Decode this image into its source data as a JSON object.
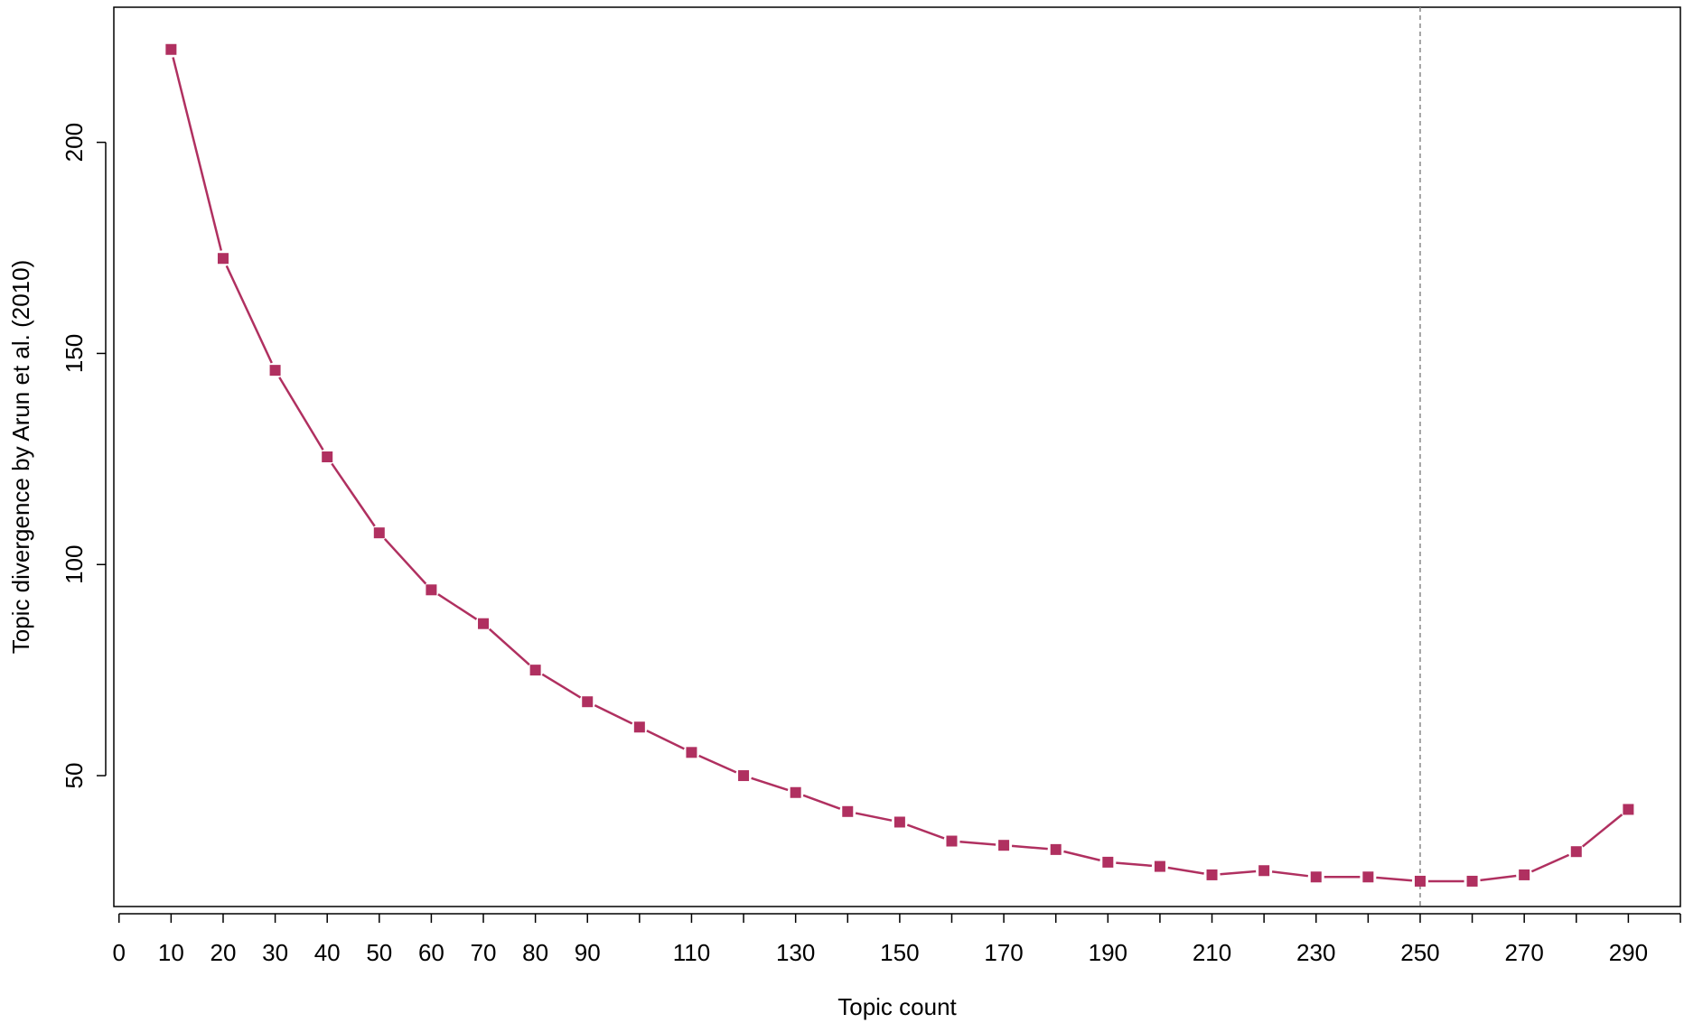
{
  "chart_data": {
    "type": "line",
    "title": "",
    "xlabel": "Topic count",
    "ylabel": "Topic divergence by Arun et al. (2010)",
    "xlim": [
      -1,
      300
    ],
    "ylim": [
      19,
      232
    ],
    "x_ticks": [
      0,
      10,
      20,
      30,
      40,
      50,
      60,
      70,
      80,
      90,
      100,
      110,
      120,
      130,
      140,
      150,
      160,
      170,
      180,
      190,
      200,
      210,
      220,
      230,
      240,
      250,
      260,
      270,
      280,
      290,
      300
    ],
    "x_tick_labels": [
      "0",
      "10",
      "20",
      "30",
      "40",
      "50",
      "60",
      "70",
      "80",
      "90",
      "",
      "110",
      "",
      "130",
      "",
      "150",
      "",
      "170",
      "",
      "190",
      "",
      "210",
      "",
      "230",
      "",
      "250",
      "",
      "270",
      "",
      "290",
      ""
    ],
    "y_ticks": [
      50,
      100,
      150,
      200
    ],
    "y_tick_labels": [
      "50",
      "100",
      "150",
      "200"
    ],
    "grid": false,
    "reference_line": {
      "x": 250,
      "style": "dashed",
      "color": "#888888"
    },
    "series": [
      {
        "color": "#b03060",
        "marker": "square",
        "x": [
          10,
          20,
          30,
          40,
          50,
          60,
          70,
          80,
          90,
          100,
          110,
          120,
          130,
          140,
          150,
          160,
          170,
          180,
          190,
          200,
          210,
          220,
          230,
          240,
          250,
          260,
          270,
          280,
          290
        ],
        "y": [
          222,
          172.5,
          146,
          125.5,
          107.5,
          94,
          86,
          75,
          67.5,
          61.5,
          55.5,
          50,
          46,
          41.5,
          39,
          34.5,
          33.5,
          32.5,
          29.5,
          28.5,
          26.5,
          27.5,
          26,
          26,
          25,
          25,
          26.5,
          32,
          42
        ]
      }
    ]
  }
}
